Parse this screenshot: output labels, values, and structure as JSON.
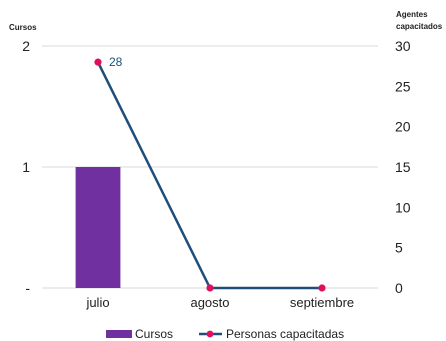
{
  "chart_data": {
    "type": "bar+line",
    "categories": [
      "julio",
      "agosto",
      "septiembre"
    ],
    "series": [
      {
        "name": "Cursos",
        "type": "bar",
        "axis": "left",
        "values": [
          1,
          0,
          0
        ],
        "color": "#7030a0"
      },
      {
        "name": "Personas capacitadas",
        "type": "line",
        "axis": "right",
        "values": [
          28,
          0,
          0
        ],
        "color": "#1f4e79",
        "marker_color": "#e0105a"
      }
    ],
    "data_labels": [
      {
        "series": "Personas capacitadas",
        "category": "julio",
        "text": "28"
      }
    ],
    "left_axis": {
      "title": "Cursos",
      "range": [
        0,
        2
      ],
      "ticks": [
        "-",
        "1",
        "2"
      ]
    },
    "right_axis": {
      "title_line1": "Agentes",
      "title_line2": "capacitados",
      "range": [
        0,
        30
      ],
      "ticks": [
        "0",
        "5",
        "10",
        "15",
        "20",
        "25",
        "30"
      ]
    },
    "grid": "horizontal",
    "legend": {
      "position": "bottom",
      "items": [
        "Cursos",
        "Personas capacitadas"
      ]
    }
  }
}
